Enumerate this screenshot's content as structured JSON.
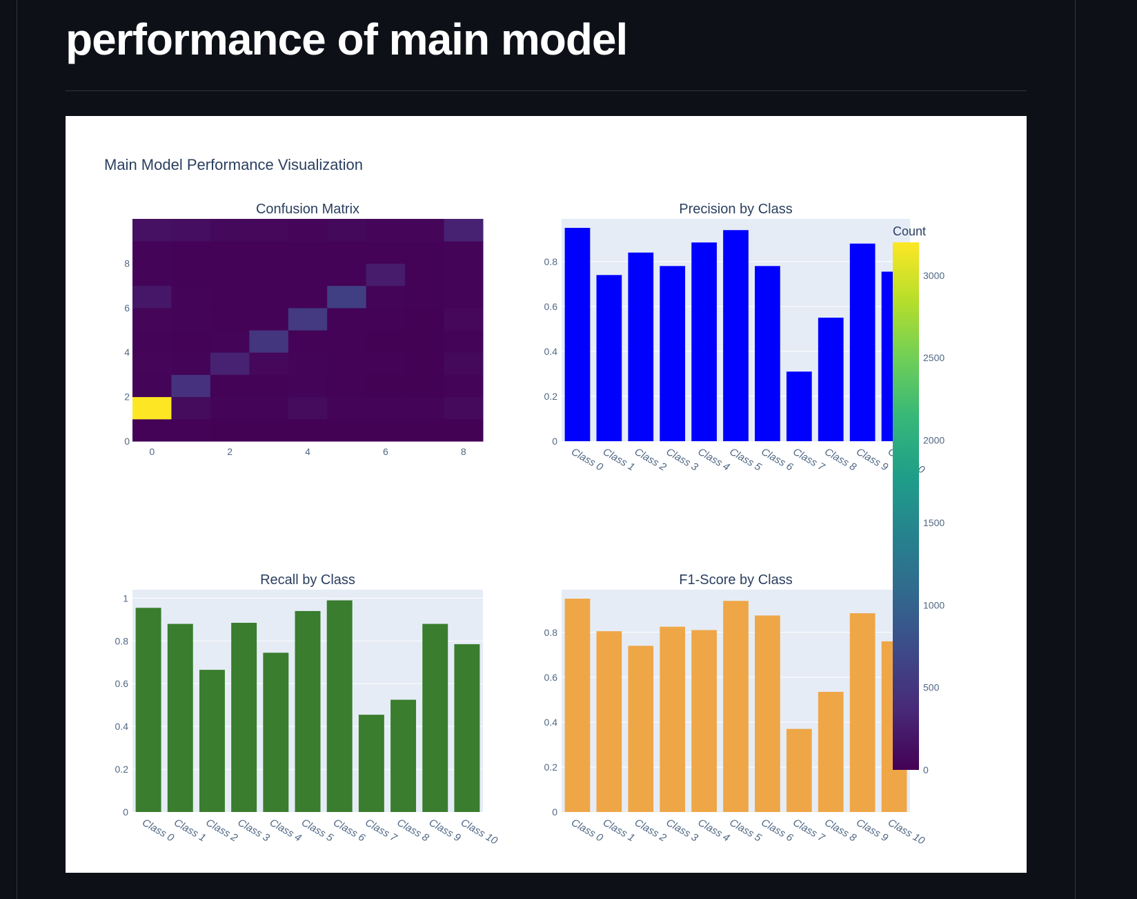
{
  "page": {
    "heading": "performance of main model"
  },
  "chart_data": {
    "title": "Main Model Performance Visualization",
    "colorbar": {
      "title": "Count",
      "range": [
        0,
        3200
      ],
      "ticks": [
        0,
        500,
        1000,
        1500,
        2000,
        2500,
        3000
      ],
      "colorscale": "viridis"
    },
    "subplots": [
      {
        "type": "heatmap",
        "title": "Confusion Matrix",
        "x": [
          0,
          1,
          2,
          3,
          4,
          5,
          6,
          7,
          8
        ],
        "y": [
          0,
          1,
          2,
          3,
          4,
          5,
          6,
          7,
          8,
          9
        ],
        "xticks": [
          0,
          2,
          4,
          6,
          8
        ],
        "yticks": [
          0,
          2,
          4,
          6,
          8
        ],
        "z": [
          [
            20,
            15,
            10,
            10,
            10,
            10,
            10,
            10,
            10
          ],
          [
            3200,
            90,
            40,
            30,
            100,
            30,
            25,
            30,
            80
          ],
          [
            40,
            450,
            20,
            15,
            30,
            15,
            10,
            10,
            40
          ],
          [
            50,
            30,
            300,
            60,
            40,
            20,
            15,
            10,
            70
          ],
          [
            40,
            20,
            30,
            500,
            20,
            20,
            10,
            10,
            40
          ],
          [
            50,
            30,
            20,
            20,
            550,
            20,
            20,
            10,
            60
          ],
          [
            200,
            30,
            20,
            20,
            20,
            600,
            30,
            20,
            30
          ],
          [
            40,
            20,
            20,
            15,
            15,
            20,
            250,
            20,
            30
          ],
          [
            40,
            20,
            15,
            15,
            20,
            15,
            20,
            20,
            30
          ],
          [
            150,
            120,
            70,
            60,
            50,
            70,
            50,
            50,
            300
          ]
        ]
      },
      {
        "type": "bar",
        "title": "Precision by Class",
        "color": "#0000ff",
        "categories": [
          "Class 0",
          "Class 1",
          "Class 2",
          "Class 3",
          "Class 4",
          "Class 5",
          "Class 6",
          "Class 7",
          "Class 8",
          "Class 9",
          "Class 10"
        ],
        "values": [
          0.95,
          0.74,
          0.84,
          0.78,
          0.885,
          0.94,
          0.78,
          0.31,
          0.55,
          0.88,
          0.755
        ],
        "ylim": [
          0,
          0.99
        ],
        "yticks": [
          0,
          0.2,
          0.4,
          0.6,
          0.8
        ]
      },
      {
        "type": "bar",
        "title": "Recall by Class",
        "color": "#3a7d2e",
        "categories": [
          "Class 0",
          "Class 1",
          "Class 2",
          "Class 3",
          "Class 4",
          "Class 5",
          "Class 6",
          "Class 7",
          "Class 8",
          "Class 9",
          "Class 10"
        ],
        "values": [
          0.955,
          0.88,
          0.665,
          0.885,
          0.745,
          0.94,
          0.99,
          0.455,
          0.525,
          0.88,
          0.785
        ],
        "ylim": [
          0,
          1.04
        ],
        "yticks": [
          0,
          0.2,
          0.4,
          0.6,
          0.8,
          1
        ]
      },
      {
        "type": "bar",
        "title": "F1-Score by Class",
        "color": "#efa647",
        "categories": [
          "Class 0",
          "Class 1",
          "Class 2",
          "Class 3",
          "Class 4",
          "Class 5",
          "Class 6",
          "Class 7",
          "Class 8",
          "Class 9",
          "Class 10"
        ],
        "values": [
          0.95,
          0.805,
          0.74,
          0.825,
          0.81,
          0.94,
          0.875,
          0.37,
          0.535,
          0.885,
          0.76
        ],
        "ylim": [
          0,
          0.99
        ],
        "yticks": [
          0,
          0.2,
          0.4,
          0.6,
          0.8
        ]
      }
    ]
  }
}
